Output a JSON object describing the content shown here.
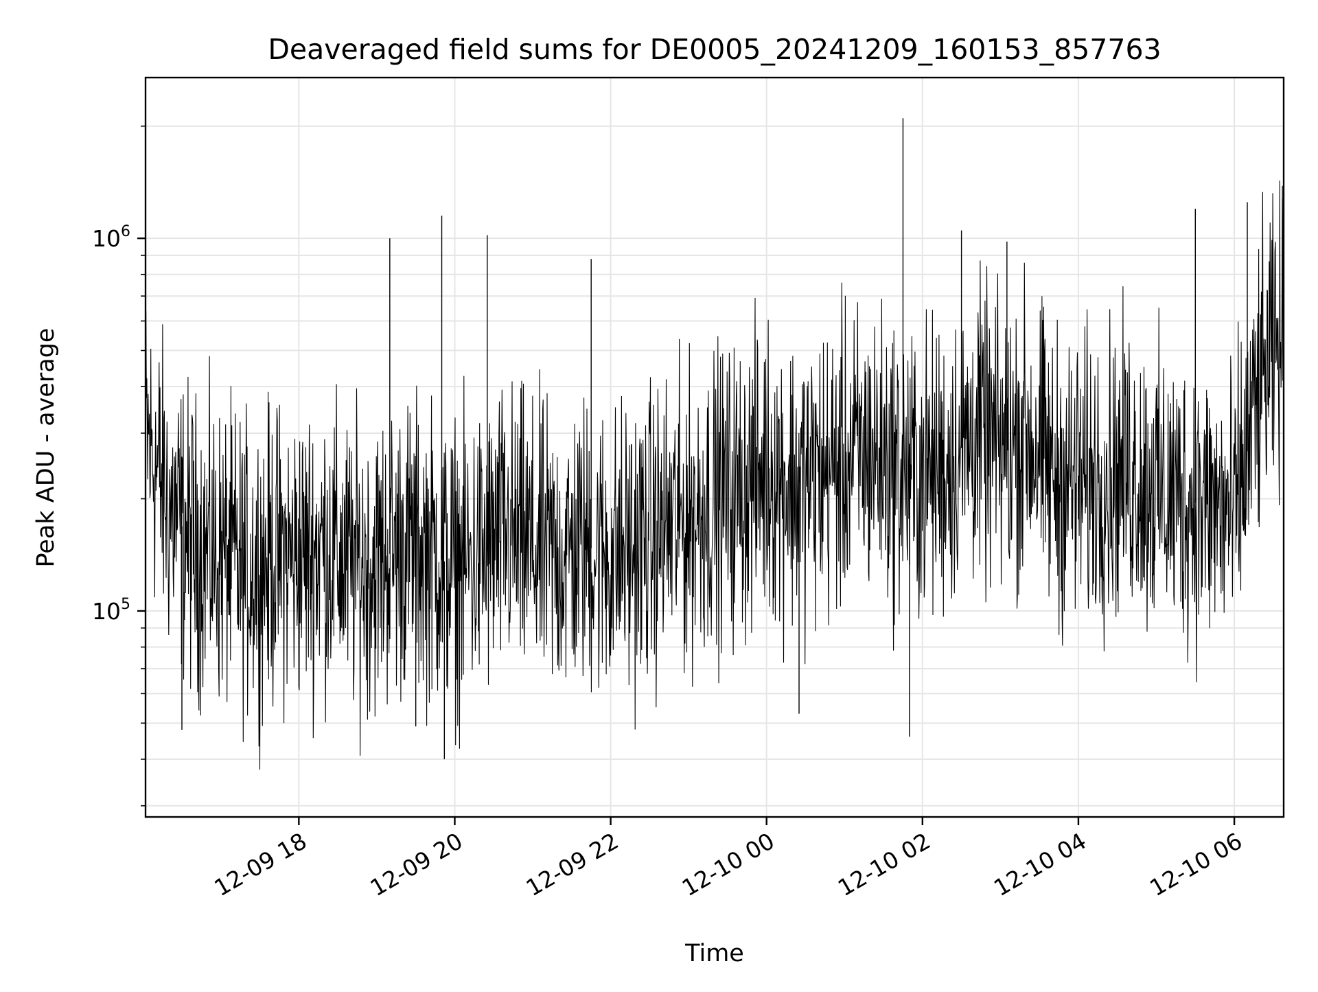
{
  "chart_data": {
    "type": "line",
    "title": "Deaveraged field sums for DE0005_20241209_160153_857763",
    "xlabel": "Time",
    "ylabel": "Peak ADU - average",
    "y_scale": "log",
    "grid": true,
    "legend": "none",
    "line_color": "#000000",
    "grid_color": "#e5e5e5",
    "xlim": [
      "2024-12-09 16:02",
      "2024-12-10 06:38"
    ],
    "ylim": [
      28000,
      2700000
    ],
    "x_ticks": [
      {
        "value": "2024-12-09 18:00",
        "label": "12-09 18"
      },
      {
        "value": "2024-12-09 20:00",
        "label": "12-09 20"
      },
      {
        "value": "2024-12-09 22:00",
        "label": "12-09 22"
      },
      {
        "value": "2024-12-10 00:00",
        "label": "12-10 00"
      },
      {
        "value": "2024-12-10 02:00",
        "label": "12-10 02"
      },
      {
        "value": "2024-12-10 04:00",
        "label": "12-10 04"
      },
      {
        "value": "2024-12-10 06:00",
        "label": "12-10 06"
      }
    ],
    "y_ticks": [
      {
        "value": 100000,
        "base": "10",
        "exp": "5"
      },
      {
        "value": 1000000,
        "base": "10",
        "exp": "6"
      }
    ],
    "series": [
      {
        "x": [
          "2024-12-09 16:02",
          "2024-12-09 16:20",
          "2024-12-09 16:40",
          "2024-12-09 17:00",
          "2024-12-09 17:20",
          "2024-12-09 17:40",
          "2024-12-09 18:00",
          "2024-12-09 18:20",
          "2024-12-09 18:40",
          "2024-12-09 19:00",
          "2024-12-09 19:20",
          "2024-12-09 19:40",
          "2024-12-09 20:00",
          "2024-12-09 20:20",
          "2024-12-09 20:40",
          "2024-12-09 21:00",
          "2024-12-09 21:20",
          "2024-12-09 21:40",
          "2024-12-09 22:00",
          "2024-12-09 22:20",
          "2024-12-09 22:40",
          "2024-12-09 23:00",
          "2024-12-09 23:20",
          "2024-12-09 23:40",
          "2024-12-10 00:00",
          "2024-12-10 00:20",
          "2024-12-10 00:40",
          "2024-12-10 01:00",
          "2024-12-10 01:20",
          "2024-12-10 01:40",
          "2024-12-10 02:00",
          "2024-12-10 02:20",
          "2024-12-10 02:40",
          "2024-12-10 03:00",
          "2024-12-10 03:20",
          "2024-12-10 03:40",
          "2024-12-10 04:00",
          "2024-12-10 04:20",
          "2024-12-10 04:40",
          "2024-12-10 05:00",
          "2024-12-10 05:20",
          "2024-12-10 05:40",
          "2024-12-10 06:00",
          "2024-12-10 06:20",
          "2024-12-10 06:38"
        ],
        "y": [
          300000,
          190000,
          150000,
          140000,
          130000,
          140000,
          140000,
          150000,
          130000,
          135000,
          150000,
          145000,
          130000,
          140000,
          160000,
          145000,
          140000,
          150000,
          140000,
          150000,
          165000,
          175000,
          200000,
          210000,
          240000,
          220000,
          230000,
          250000,
          270000,
          240000,
          230000,
          250000,
          300000,
          270000,
          300000,
          230000,
          220000,
          230000,
          240000,
          210000,
          200000,
          190000,
          180000,
          400000,
          550000
        ]
      }
    ],
    "spike_high": [
      {
        "x": "2024-12-09 19:10",
        "y": 1000000
      },
      {
        "x": "2024-12-09 19:50",
        "y": 1150000
      },
      {
        "x": "2024-12-09 20:25",
        "y": 1020000
      },
      {
        "x": "2024-12-09 21:45",
        "y": 880000
      },
      {
        "x": "2024-12-10 01:45",
        "y": 2100000
      },
      {
        "x": "2024-12-10 02:30",
        "y": 1050000
      },
      {
        "x": "2024-12-10 03:05",
        "y": 980000
      },
      {
        "x": "2024-12-10 05:30",
        "y": 1200000
      },
      {
        "x": "2024-12-10 06:10",
        "y": 1250000
      }
    ],
    "spike_low": [
      {
        "x": "2024-12-09 16:30",
        "y": 48000
      },
      {
        "x": "2024-12-09 19:30",
        "y": 49000
      },
      {
        "x": "2024-12-09 19:52",
        "y": 40000
      },
      {
        "x": "2024-12-10 01:50",
        "y": 46000
      },
      {
        "x": "2024-12-10 00:25",
        "y": 53000
      }
    ]
  }
}
